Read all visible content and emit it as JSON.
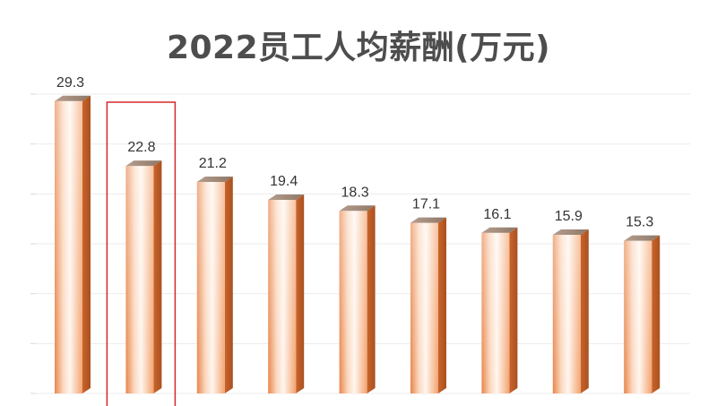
{
  "chart_data": {
    "type": "bar",
    "title": "2022员工人均薪酬(万元)",
    "categories": [
      "",
      "",
      "",
      "",
      "",
      "",
      "",
      "",
      ""
    ],
    "values": [
      29.3,
      22.8,
      21.2,
      19.4,
      18.3,
      17.1,
      16.1,
      15.9,
      15.3
    ],
    "value_labels": [
      "29.3",
      "22.8",
      "21.2",
      "19.4",
      "18.3",
      "17.1",
      "16.1",
      "15.9",
      "15.3"
    ],
    "xlabel": "",
    "ylabel": "",
    "ylim": [
      0,
      30
    ],
    "grid": true,
    "highlighted_index": 1,
    "colors": {
      "bar_light": "#fff4ec",
      "bar_mid": "#f7b384",
      "bar_dark": "#e2793a",
      "bar_side": "#c9642c",
      "bar_top": "#9a8577",
      "highlight_box": "#d62828",
      "grid": "#ebebeb"
    }
  }
}
